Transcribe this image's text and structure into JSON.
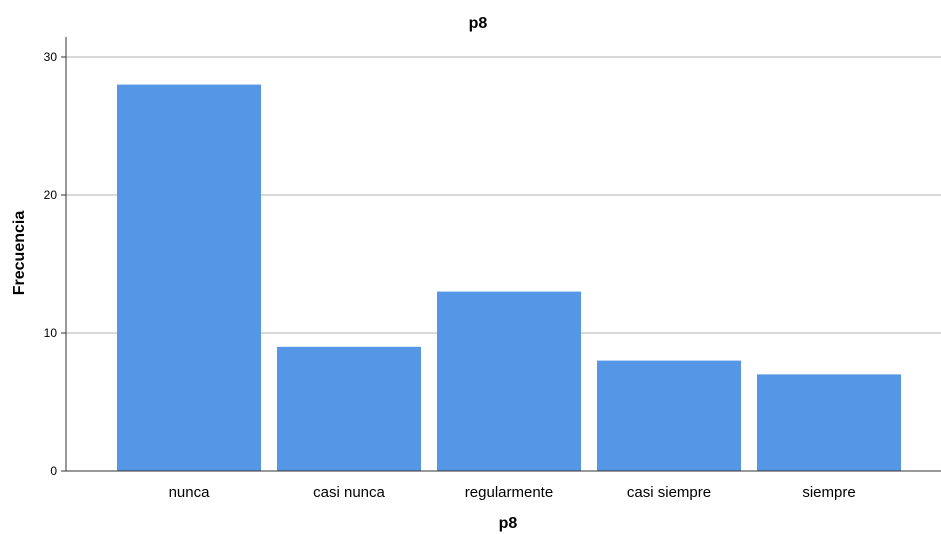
{
  "chart_data": {
    "type": "bar",
    "title": "p8",
    "xlabel": "p8",
    "ylabel": "Frecuencia",
    "categories": [
      "nunca",
      "casi nunca",
      "regularmente",
      "casi siempre",
      "siempre"
    ],
    "values": [
      28,
      9,
      13,
      8,
      7
    ],
    "ylim": [
      0,
      30
    ],
    "yticks": [
      0,
      10,
      20,
      30
    ],
    "grid": true,
    "legend": "none",
    "bar_color": "#5596e6",
    "grid_color": "#cccccc",
    "axis_color": "#333333"
  }
}
